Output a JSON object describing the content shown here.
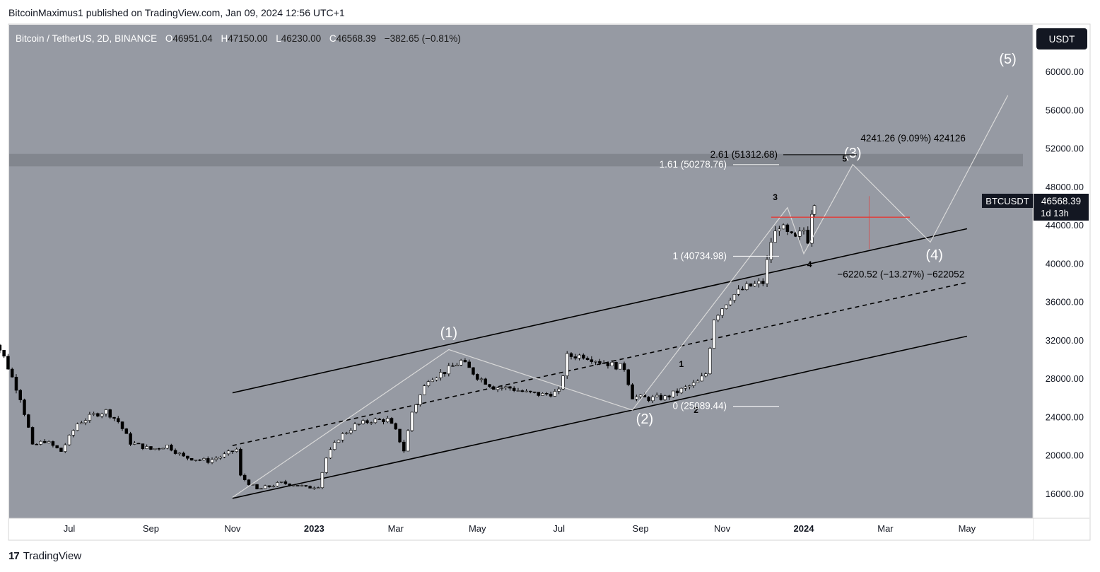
{
  "header": {
    "publisher": "BitcoinMaximus1 published on TradingView.com, Jan 09, 2024 12:56 UTC+1"
  },
  "footer": {
    "brand": "TradingView",
    "logo_glyph": "17"
  },
  "legend": {
    "symbol": "Bitcoin / TetherUS, 2D, BINANCE",
    "o_key": "O",
    "o_val": "46951.04",
    "h_key": "H",
    "h_val": "47150.00",
    "l_key": "L",
    "l_val": "46230.00",
    "c_key": "C",
    "c_val": "46568.39",
    "change": "−382.65 (−0.81%)"
  },
  "currency_badge": "USDT",
  "price_tag": {
    "symbol": "BTCUSDT",
    "price": "46568.39",
    "countdown": "1d 13h"
  },
  "colors": {
    "plot_bg": "#969aa3",
    "candle_body": "#ffffff",
    "candle_wick": "#000000",
    "channel": "#000000",
    "wave_path": "#d9d9d9",
    "resistance_zone": "#7f838b",
    "red_line": "#e53935"
  },
  "chart_data": {
    "type": "candlestick",
    "y_axis": {
      "ticks": [
        "60000.00",
        "56000.00",
        "52000.00",
        "48000.00",
        "44000.00",
        "40000.00",
        "36000.00",
        "32000.00",
        "28000.00",
        "24000.00",
        "20000.00",
        "16000.00"
      ],
      "range": [
        13200,
        63700
      ]
    },
    "x_axis": {
      "ticks": [
        {
          "label": "Jul",
          "pos": 0.1
        },
        {
          "label": "Sep",
          "pos": 0.2
        },
        {
          "label": "Nov",
          "pos": 0.3
        },
        {
          "label": "2023",
          "pos": 0.4
        },
        {
          "label": "Mar",
          "pos": 0.5
        },
        {
          "label": "May",
          "pos": 0.6
        },
        {
          "label": "Jul",
          "pos": 0.7
        },
        {
          "label": "Sep",
          "pos": 0.8
        },
        {
          "label": "Nov",
          "pos": 0.9
        },
        {
          "label": "2024",
          "pos": 1.0
        },
        {
          "label": "Mar",
          "pos": 1.1
        },
        {
          "label": "May",
          "pos": 1.2
        }
      ]
    },
    "waves_major": [
      {
        "label": "(1)",
        "t": 0.565,
        "price": 32300
      },
      {
        "label": "(2)",
        "t": 0.805,
        "price": 23300
      },
      {
        "label": "(3)",
        "t": 1.06,
        "price": 51000
      },
      {
        "label": "(4)",
        "t": 1.16,
        "price": 40400
      },
      {
        "label": "(5)",
        "t": 1.25,
        "price": 60800
      }
    ],
    "waves_minor": [
      {
        "label": "1",
        "t": 0.85,
        "price": 29200
      },
      {
        "label": "2",
        "t": 0.868,
        "price": 24400
      },
      {
        "label": "3",
        "t": 0.965,
        "price": 46600
      },
      {
        "label": "4",
        "t": 1.007,
        "price": 39600
      },
      {
        "label": "5",
        "t": 1.05,
        "price": 50600
      }
    ],
    "fib_levels": [
      {
        "label": "2.61 (51312.68)",
        "price": 51312.68
      },
      {
        "label": "1.61 (50278.76)",
        "price": 50278.76
      },
      {
        "label": "1 (40734.98)",
        "price": 40734.98
      },
      {
        "label": "0 (25089.44)",
        "price": 25089.44
      }
    ],
    "measurements": [
      {
        "text": "4241.26 (9.09%) 424126",
        "t": 1.03,
        "price": 53000
      },
      {
        "text": "−6220.52 (−13.27%) −622052",
        "t": 1.015,
        "price": 38800
      }
    ],
    "resistance_zone": [
      50100,
      51400
    ],
    "channel": {
      "upper": {
        "t1": 0.3,
        "p1": 26500,
        "t2": 1.2,
        "p2": 43600
      },
      "mid": {
        "t1": 0.3,
        "p1": 21000,
        "t2": 1.2,
        "p2": 38000
      },
      "lower": {
        "t1": 0.3,
        "p1": 15500,
        "t2": 1.2,
        "p2": 32400
      }
    },
    "wave_path": [
      {
        "t": 0.3,
        "price": 15600
      },
      {
        "t": 0.565,
        "price": 31000
      },
      {
        "t": 0.79,
        "price": 24700
      },
      {
        "t": 0.98,
        "price": 45800
      },
      {
        "t": 1.0,
        "price": 41000
      },
      {
        "t": 1.06,
        "price": 50300
      },
      {
        "t": 1.155,
        "price": 42200
      },
      {
        "t": 1.25,
        "price": 57500
      }
    ],
    "red_horizontal": {
      "t1": 0.96,
      "t2": 1.13,
      "price": 44800
    },
    "red_vertical": {
      "t": 1.08,
      "p1": 41500,
      "p2": 47000
    },
    "candles_anchor": [
      [
        0,
        29800
      ],
      [
        0.01,
        31800
      ],
      [
        0.02,
        30200
      ],
      [
        0.04,
        26000
      ],
      [
        0.05,
        22800
      ],
      [
        0.055,
        20900
      ],
      [
        0.07,
        21500
      ],
      [
        0.09,
        20400
      ],
      [
        0.11,
        23300
      ],
      [
        0.13,
        24200
      ],
      [
        0.145,
        24600
      ],
      [
        0.16,
        23500
      ],
      [
        0.175,
        21300
      ],
      [
        0.2,
        20600
      ],
      [
        0.22,
        21000
      ],
      [
        0.24,
        19800
      ],
      [
        0.27,
        19400
      ],
      [
        0.29,
        20000
      ],
      [
        0.305,
        20600
      ],
      [
        0.31,
        17800
      ],
      [
        0.33,
        16400
      ],
      [
        0.36,
        17100
      ],
      [
        0.38,
        16900
      ],
      [
        0.39,
        16600
      ],
      [
        0.405,
        16800
      ],
      [
        0.415,
        19700
      ],
      [
        0.43,
        21800
      ],
      [
        0.45,
        23100
      ],
      [
        0.47,
        23600
      ],
      [
        0.49,
        23700
      ],
      [
        0.5,
        22500
      ],
      [
        0.51,
        20500
      ],
      [
        0.52,
        24500
      ],
      [
        0.54,
        28000
      ],
      [
        0.56,
        28700
      ],
      [
        0.58,
        29800
      ],
      [
        0.6,
        28200
      ],
      [
        0.62,
        27100
      ],
      [
        0.64,
        27000
      ],
      [
        0.66,
        26500
      ],
      [
        0.68,
        26300
      ],
      [
        0.7,
        26600
      ],
      [
        0.71,
        30300
      ],
      [
        0.73,
        30400
      ],
      [
        0.75,
        29800
      ],
      [
        0.77,
        29300
      ],
      [
        0.78,
        29100
      ],
      [
        0.79,
        26100
      ],
      [
        0.81,
        25900
      ],
      [
        0.83,
        26000
      ],
      [
        0.85,
        26800
      ],
      [
        0.87,
        27600
      ],
      [
        0.88,
        28500
      ],
      [
        0.89,
        34300
      ],
      [
        0.91,
        36500
      ],
      [
        0.93,
        37500
      ],
      [
        0.95,
        38000
      ],
      [
        0.96,
        42300
      ],
      [
        0.97,
        44000
      ],
      [
        0.98,
        43000
      ],
      [
        0.99,
        42500
      ],
      [
        1.0,
        43500
      ],
      [
        1.005,
        42500
      ],
      [
        1.01,
        45500
      ],
      [
        1.013,
        46568
      ]
    ]
  }
}
